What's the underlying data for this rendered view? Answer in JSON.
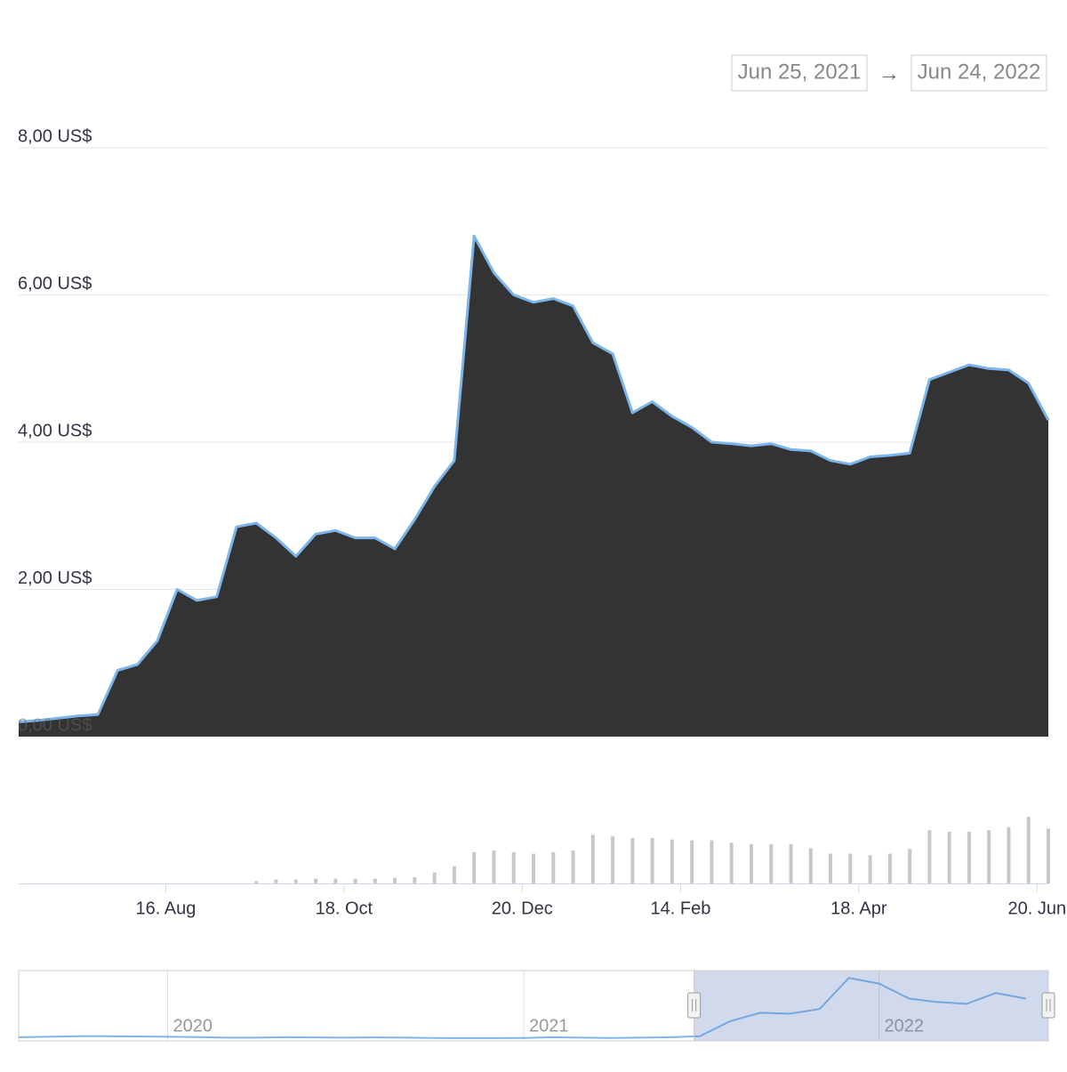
{
  "chart_data": [
    {
      "type": "area",
      "range_from": "Jun 25, 2021",
      "range_separator": "→",
      "range_to": "Jun 24, 2022",
      "x": [
        "2021-06-25",
        "2021-07-02",
        "2021-07-09",
        "2021-07-16",
        "2021-07-23",
        "2021-07-30",
        "2021-08-06",
        "2021-08-13",
        "2021-08-20",
        "2021-08-27",
        "2021-09-03",
        "2021-09-10",
        "2021-09-17",
        "2021-09-24",
        "2021-10-01",
        "2021-10-08",
        "2021-10-15",
        "2021-10-22",
        "2021-10-29",
        "2021-11-05",
        "2021-11-12",
        "2021-11-19",
        "2021-11-26",
        "2021-12-03",
        "2021-12-10",
        "2021-12-17",
        "2021-12-24",
        "2021-12-31",
        "2022-01-07",
        "2022-01-14",
        "2022-01-21",
        "2022-01-28",
        "2022-02-04",
        "2022-02-11",
        "2022-02-18",
        "2022-02-25",
        "2022-03-04",
        "2022-03-11",
        "2022-03-18",
        "2022-03-25",
        "2022-04-01",
        "2022-04-08",
        "2022-04-15",
        "2022-04-22",
        "2022-04-29",
        "2022-05-06",
        "2022-05-13",
        "2022-05-20",
        "2022-05-27",
        "2022-06-03",
        "2022-06-10",
        "2022-06-17",
        "2022-06-24"
      ],
      "series": [
        {
          "color": "#7cb5ec",
          "fill": "#333333",
          "values": [
            0.2,
            0.22,
            0.25,
            0.28,
            0.3,
            0.9,
            0.98,
            1.3,
            2.0,
            1.85,
            1.9,
            2.85,
            2.9,
            2.7,
            2.45,
            2.75,
            2.8,
            2.7,
            2.7,
            2.55,
            2.95,
            3.4,
            3.75,
            6.8,
            6.3,
            6.0,
            5.9,
            5.95,
            5.85,
            5.35,
            5.2,
            4.4,
            4.55,
            4.35,
            4.2,
            4.0,
            3.98,
            3.95,
            3.98,
            3.9,
            3.88,
            3.75,
            3.7,
            3.8,
            3.82,
            3.85,
            4.85,
            4.95,
            5.05,
            5.0,
            4.98,
            4.8,
            4.3
          ]
        },
        {
          "axis": "y2",
          "color": "#c8c8c8",
          "values": [
            0,
            0,
            0,
            0,
            0,
            0,
            0,
            0,
            0,
            0,
            0,
            0,
            3,
            5,
            5,
            6,
            6,
            6,
            6,
            7,
            8,
            14,
            22,
            40,
            42,
            40,
            38,
            40,
            42,
            62,
            60,
            58,
            58,
            56,
            55,
            55,
            52,
            50,
            50,
            50,
            45,
            38,
            38,
            36,
            38,
            44,
            68,
            66,
            66,
            68,
            72,
            85,
            70
          ]
        }
      ],
      "ylim": [
        0,
        8
      ],
      "yticks": [
        {
          "value": 0,
          "label": "0,00 US$"
        },
        {
          "value": 2,
          "label": "2,00 US$"
        },
        {
          "value": 4,
          "label": "4,00 US$"
        },
        {
          "value": 6,
          "label": "6,00 US$"
        },
        {
          "value": 8,
          "label": "8,00 US$"
        }
      ],
      "y2lim": [
        0,
        100
      ],
      "xticks": [
        {
          "value": "2021-08-16",
          "label": "16. Aug"
        },
        {
          "value": "2021-10-18",
          "label": "18. Oct"
        },
        {
          "value": "2021-12-20",
          "label": "20. Dec"
        },
        {
          "value": "2022-02-14",
          "label": "14. Feb"
        },
        {
          "value": "2022-04-18",
          "label": "18. Apr"
        },
        {
          "value": "2022-06-20",
          "label": "20. Jun"
        }
      ],
      "grid": true
    },
    {
      "type": "line",
      "x": [
        "2019-08",
        "2019-09",
        "2019-10",
        "2019-11",
        "2019-12",
        "2020-01",
        "2020-02",
        "2020-03",
        "2020-04",
        "2020-05",
        "2020-06",
        "2020-07",
        "2020-08",
        "2020-09",
        "2020-10",
        "2020-11",
        "2020-12",
        "2021-01",
        "2021-02",
        "2021-03",
        "2021-04",
        "2021-05",
        "2021-06",
        "2021-07",
        "2021-08",
        "2021-09",
        "2021-10",
        "2021-11",
        "2021-12",
        "2022-01",
        "2022-02",
        "2022-03",
        "2022-04",
        "2022-05",
        "2022-06"
      ],
      "values": [
        0.2,
        0.25,
        0.3,
        0.3,
        0.28,
        0.25,
        0.22,
        0.15,
        0.15,
        0.2,
        0.18,
        0.15,
        0.18,
        0.15,
        0.12,
        0.1,
        0.1,
        0.12,
        0.2,
        0.15,
        0.12,
        0.15,
        0.2,
        0.3,
        1.9,
        2.8,
        2.7,
        3.2,
        6.5,
        5.9,
        4.3,
        3.95,
        3.75,
        4.9,
        4.3
      ],
      "color": "#7cb5ec",
      "xlim": [
        "2019-08-01",
        "2022-06-24"
      ],
      "ylim": [
        0,
        7
      ],
      "xticks": [
        {
          "value": "2020-01",
          "label": "2020"
        },
        {
          "value": "2021-01",
          "label": "2021"
        },
        {
          "value": "2022-01",
          "label": "2022"
        }
      ]
    }
  ]
}
